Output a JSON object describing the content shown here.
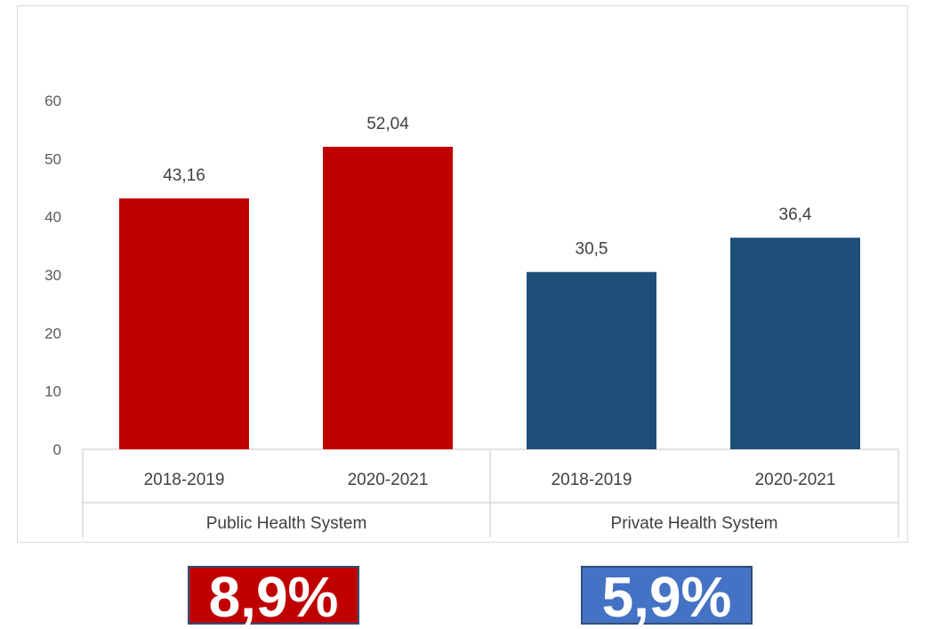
{
  "chart_data": {
    "type": "bar",
    "title": "",
    "xlabel": "",
    "ylabel": "",
    "ylim": [
      0,
      60
    ],
    "yticks": [
      0,
      10,
      20,
      30,
      40,
      50,
      60
    ],
    "grid": false,
    "legend": "none",
    "groups": [
      {
        "label": "Public Health System",
        "color": "#c00000",
        "bars": [
          {
            "category": "2018-2019",
            "value": 43.16,
            "label": "43,16"
          },
          {
            "category": "2020-2021",
            "value": 52.04,
            "label": "52,04"
          }
        ]
      },
      {
        "label": "Private Health System",
        "color": "#1f4e79",
        "bars": [
          {
            "category": "2018-2019",
            "value": 30.5,
            "label": "30,5"
          },
          {
            "category": "2020-2021",
            "value": 36.4,
            "label": "36,4"
          }
        ]
      }
    ]
  },
  "badges": {
    "public": {
      "text": "8,9%",
      "color": "#c00000"
    },
    "private": {
      "text": "5,9%",
      "color": "#4472c4"
    }
  }
}
